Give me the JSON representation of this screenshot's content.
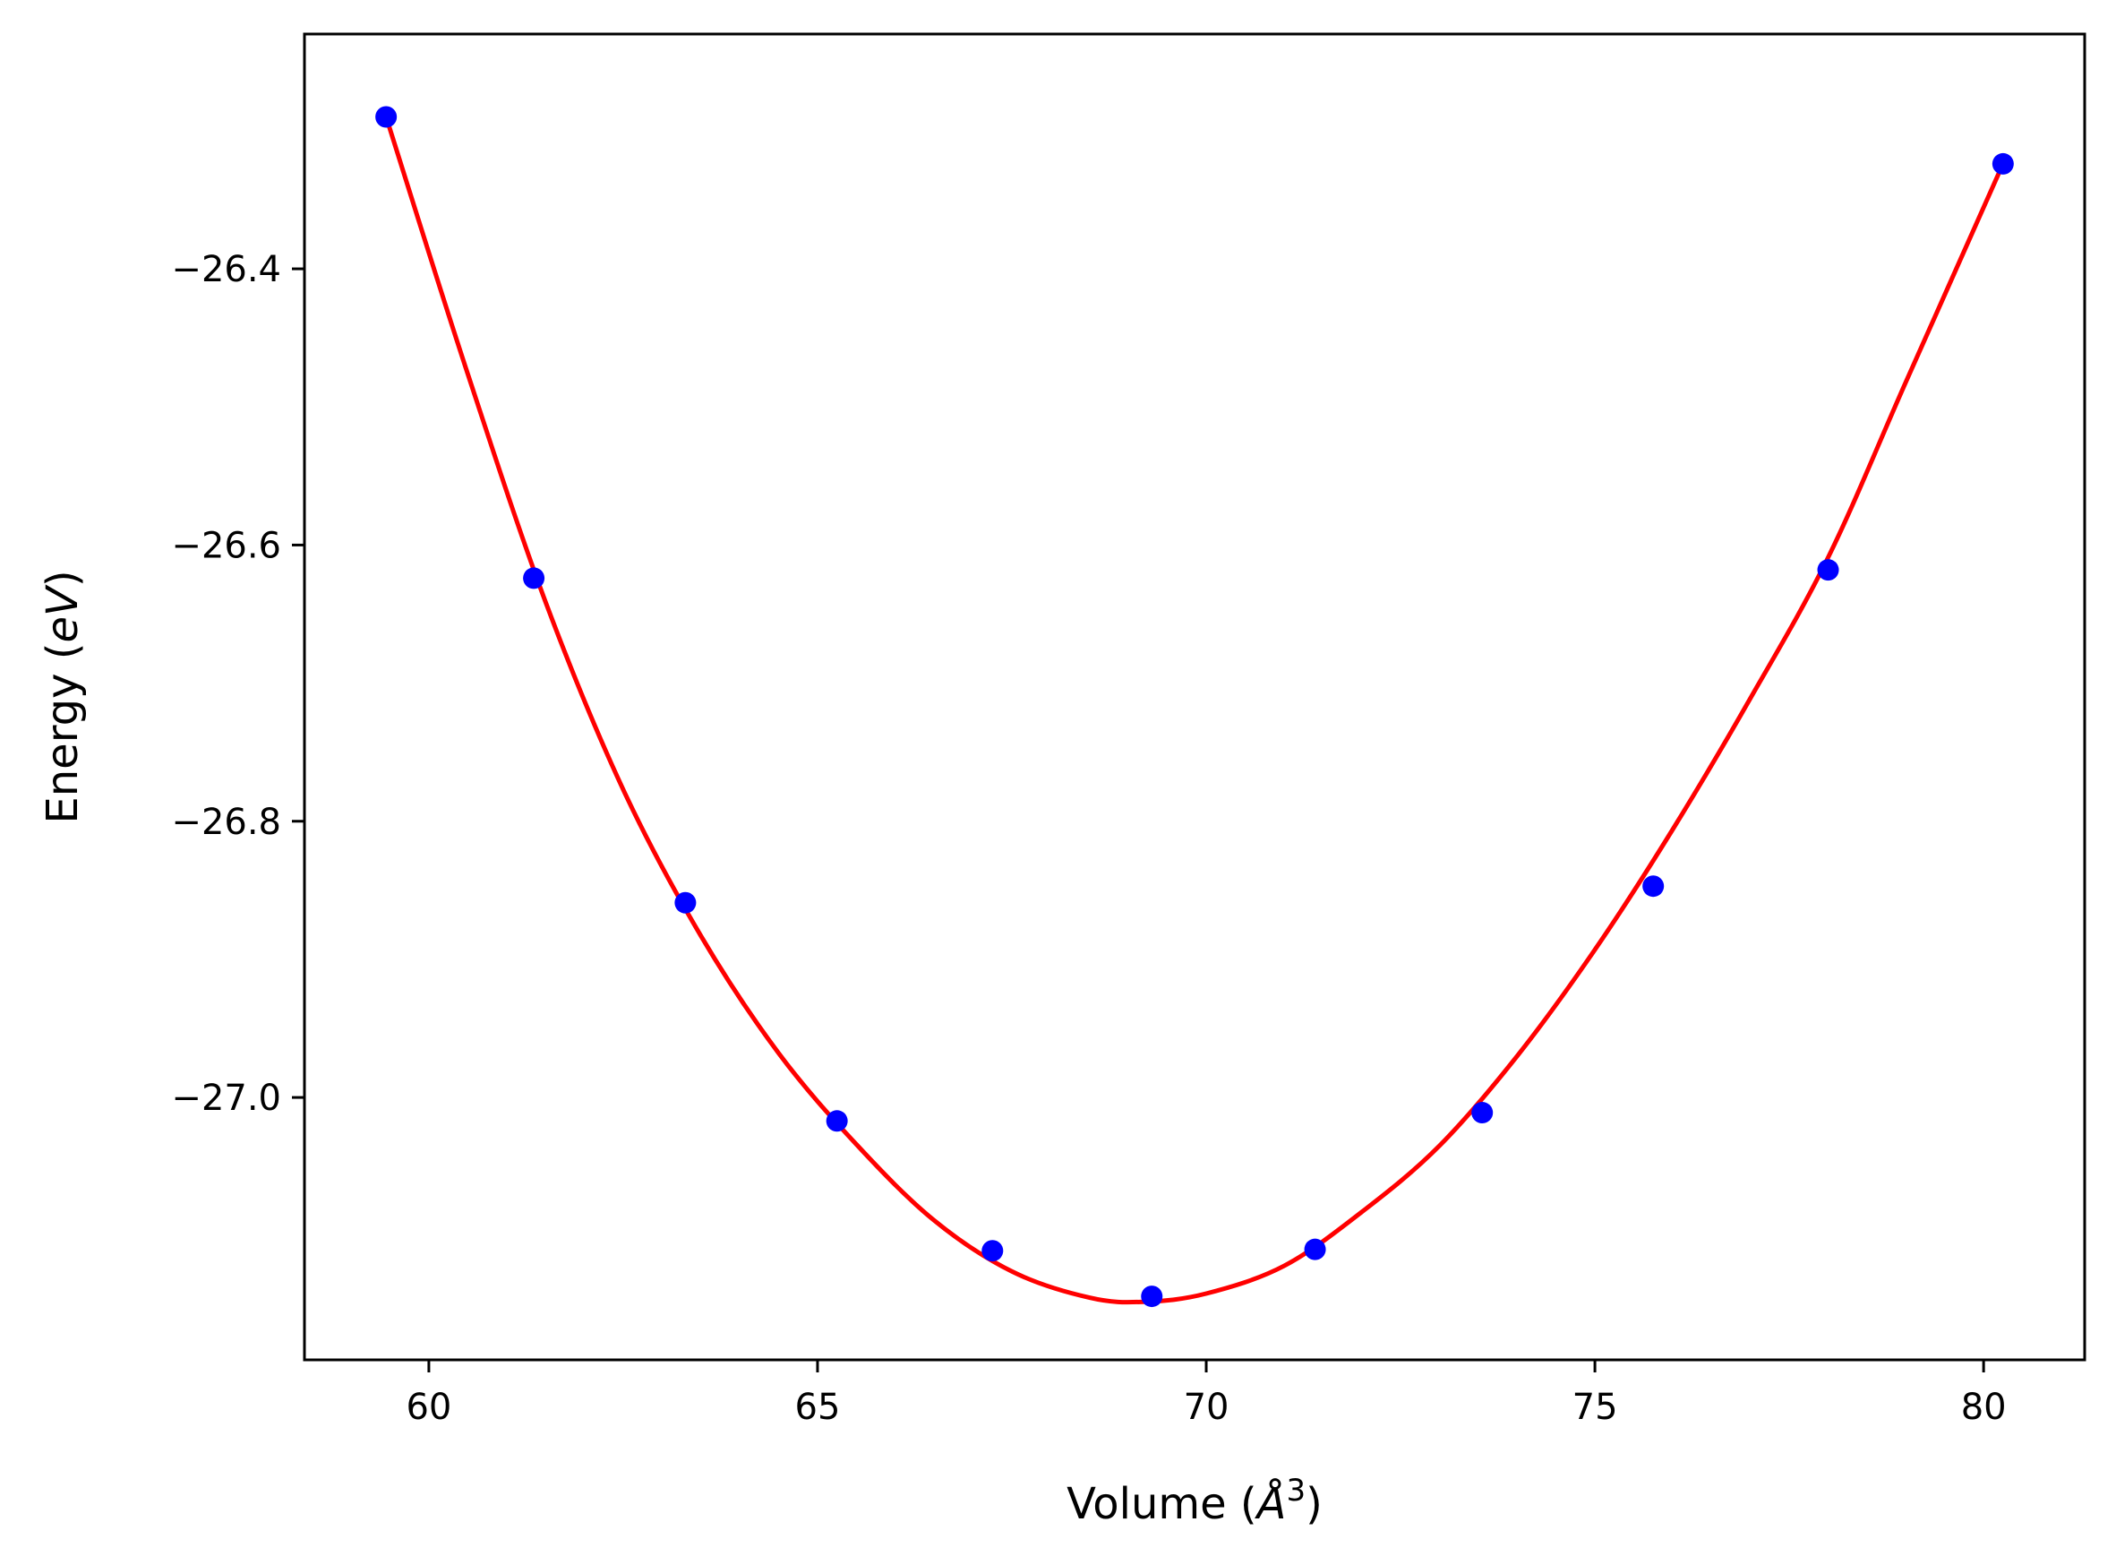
{
  "chart_data": {
    "type": "scatter",
    "xlabel": "Volume (Å³)",
    "xlabel_parts": {
      "pre": "Volume (",
      "sym": "Å",
      "sup": "3",
      "post": ")"
    },
    "ylabel": "Energy (eV)",
    "ylabel_parts": {
      "pre": "Energy (",
      "sym": "eV",
      "post": ")"
    },
    "xlim": [
      58.4,
      81.3
    ],
    "ylim": [
      -27.19,
      -26.23
    ],
    "xticks": [
      60,
      65,
      70,
      75,
      80
    ],
    "xtick_labels": [
      "60",
      "65",
      "70",
      "75",
      "80"
    ],
    "yticks": [
      -26.4,
      -26.6,
      -26.8,
      -27.0
    ],
    "ytick_labels": [
      "−26.4",
      "−26.6",
      "−26.8",
      "−27.0"
    ],
    "grid": false,
    "series": [
      {
        "kind": "points",
        "color": "#0000ff",
        "x": [
          59.45,
          61.35,
          63.3,
          65.25,
          67.25,
          69.3,
          71.4,
          73.55,
          75.75,
          78.0,
          80.25
        ],
        "y": [
          -26.29,
          -26.624,
          -26.859,
          -27.017,
          -27.111,
          -27.144,
          -27.11,
          -27.011,
          -26.847,
          -26.618,
          -26.324
        ]
      },
      {
        "kind": "fit-curve",
        "color": "#ff0000",
        "x": [
          59.45,
          60.5,
          61.5,
          62.5,
          63.5,
          64.5,
          65.5,
          66.5,
          67.5,
          68.5,
          69.2,
          70.0,
          71.0,
          72.0,
          73.0,
          74.0,
          75.0,
          76.0,
          77.0,
          78.0,
          79.0,
          80.25
        ],
        "y": [
          -26.29,
          -26.476,
          -26.641,
          -26.777,
          -26.883,
          -26.968,
          -27.034,
          -27.089,
          -27.126,
          -27.145,
          -27.148,
          -27.142,
          -27.122,
          -27.083,
          -27.035,
          -26.97,
          -26.893,
          -26.806,
          -26.711,
          -26.609,
          -26.482,
          -26.324
        ]
      }
    ]
  }
}
